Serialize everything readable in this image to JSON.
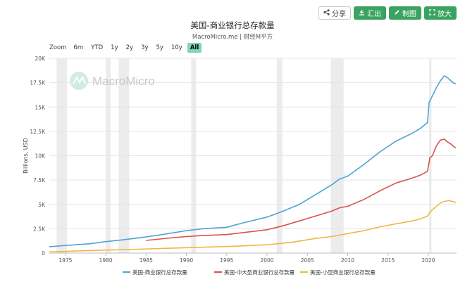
{
  "toolbar": {
    "share_label": "分享",
    "export_label": "汇出",
    "draw_label": "制图",
    "zoom_label": "放大"
  },
  "header": {
    "title": "美国-商业银行总存款量",
    "subtitle": "MacroMicro.me | 财经M平方"
  },
  "watermark": "MacroMicro",
  "rangebar": {
    "label": "Zoom",
    "options": [
      "6m",
      "YTD",
      "1y",
      "2y",
      "3y",
      "5y",
      "10y",
      "All"
    ],
    "selected": "All"
  },
  "chart_data": {
    "type": "line",
    "title": "美国-商业银行总存款量",
    "subtitle": "MacroMicro.me | 财经M平方",
    "xlabel": "",
    "ylabel": "Billions, USD",
    "xlim": [
      1973,
      2023.5
    ],
    "ylim": [
      0,
      20000
    ],
    "x_ticks": [
      1975,
      1980,
      1985,
      1990,
      1995,
      2000,
      2005,
      2010,
      2015,
      2020
    ],
    "y_ticks": [
      0,
      2500,
      5000,
      7500,
      10000,
      12500,
      15000,
      17500,
      20000
    ],
    "y_tick_labels": [
      "0",
      "2.5K",
      "5K",
      "7.5K",
      "10K",
      "12.5K",
      "15K",
      "17.5K",
      "20K"
    ],
    "grid": "horizontal",
    "legend_position": "bottom",
    "recession_bands": [
      [
        1973.9,
        1975.2
      ],
      [
        1980.0,
        1980.6
      ],
      [
        1981.6,
        1982.9
      ],
      [
        1990.6,
        1991.2
      ],
      [
        2001.2,
        2001.9
      ],
      [
        2007.9,
        2009.5
      ],
      [
        2020.1,
        2020.4
      ]
    ],
    "series": [
      {
        "name": "美国-商业银行总存款量",
        "color": "#4fa3d4",
        "x": [
          1973,
          1975,
          1978,
          1980,
          1982,
          1985,
          1987,
          1990,
          1992,
          1995,
          1997,
          2000,
          2001,
          2002,
          2004,
          2006,
          2008,
          2009,
          2010,
          2012,
          2014,
          2016,
          2018,
          2019,
          2019.9,
          2020.1,
          2020.3,
          2021,
          2021.5,
          2022,
          2022.4,
          2022.8,
          2023.2,
          2023.4
        ],
        "values": [
          650,
          780,
          950,
          1180,
          1350,
          1650,
          1900,
          2300,
          2500,
          2650,
          3100,
          3700,
          4000,
          4300,
          5000,
          6000,
          7000,
          7600,
          7900,
          9100,
          10400,
          11500,
          12300,
          12800,
          13400,
          15500,
          15800,
          17000,
          17700,
          18200,
          18000,
          17700,
          17400,
          17400
        ]
      },
      {
        "name": "美国-中大型商业银行总存款量",
        "color": "#d9534a",
        "x": [
          1985,
          1988,
          1990,
          1992,
          1995,
          1997,
          2000,
          2002,
          2004,
          2006,
          2008,
          2009,
          2010,
          2012,
          2014,
          2016,
          2018,
          2019,
          2019.9,
          2020.2,
          2020.5,
          2021,
          2021.5,
          2022,
          2022.4,
          2022.8,
          2023.2,
          2023.4
        ],
        "values": [
          1300,
          1550,
          1700,
          1800,
          1900,
          2100,
          2400,
          2800,
          3300,
          3800,
          4300,
          4650,
          4800,
          5500,
          6400,
          7200,
          7700,
          8000,
          8400,
          9800,
          10000,
          11000,
          11600,
          11700,
          11400,
          11200,
          10900,
          10800
        ]
      },
      {
        "name": "美国-小型商业银行总存款量",
        "color": "#f2b544",
        "x": [
          1973,
          1976,
          1980,
          1984,
          1988,
          1992,
          1996,
          2000,
          2003,
          2006,
          2008,
          2010,
          2012,
          2014,
          2016,
          2018,
          2019,
          2019.9,
          2020.3,
          2021,
          2021.6,
          2022,
          2022.5,
          2023,
          2023.4
        ],
        "values": [
          120,
          200,
          300,
          400,
          500,
          600,
          700,
          850,
          1100,
          1500,
          1700,
          2000,
          2300,
          2700,
          3000,
          3300,
          3500,
          3800,
          4300,
          4800,
          5200,
          5300,
          5400,
          5300,
          5200
        ]
      }
    ]
  }
}
